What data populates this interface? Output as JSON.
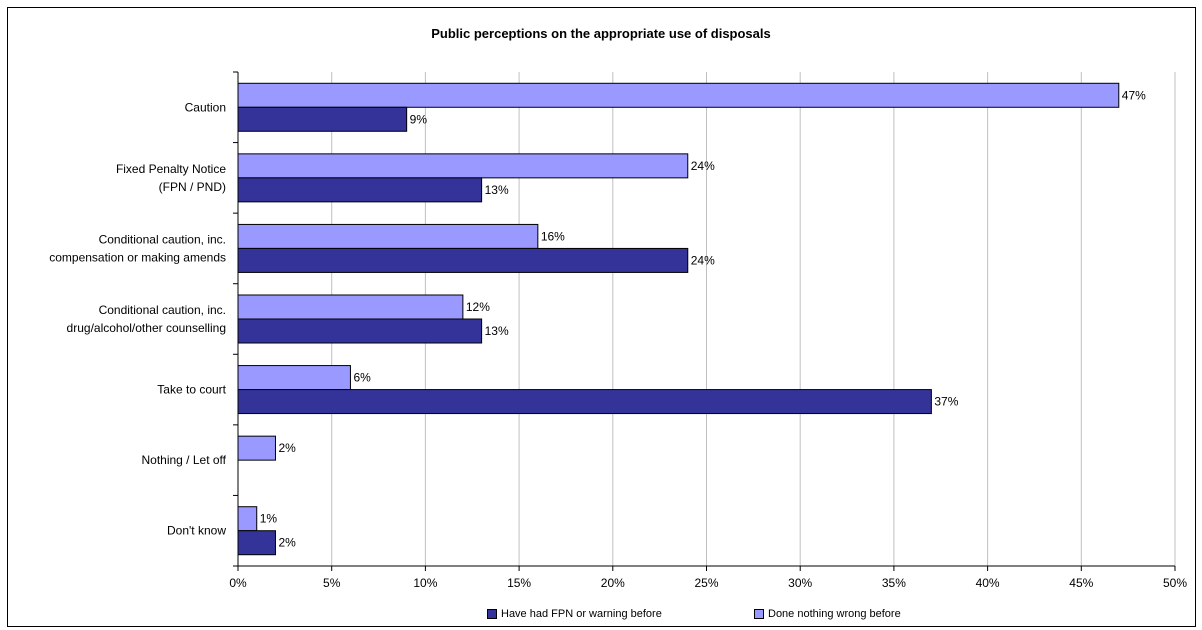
{
  "chart_data": {
    "type": "bar",
    "orientation": "horizontal",
    "title": "Public perceptions on the appropriate use of disposals",
    "categories": [
      [
        "Caution"
      ],
      [
        "Fixed Penalty Notice",
        "(FPN / PND)"
      ],
      [
        "Conditional caution, inc.",
        "compensation or making amends"
      ],
      [
        "Conditional caution, inc.",
        "drug/alcohol/other counselling"
      ],
      [
        "Take to court"
      ],
      [
        "Nothing / Let off"
      ],
      [
        "Don't know"
      ]
    ],
    "series": [
      {
        "name": "Done nothing wrong before",
        "color": "#9999ff",
        "values": [
          47,
          24,
          16,
          12,
          6,
          2,
          1
        ],
        "labels": [
          "47%",
          "24%",
          "16%",
          "12%",
          "6%",
          "2%",
          "1%"
        ]
      },
      {
        "name": "Have had FPN or warning before",
        "color": "#333399",
        "values": [
          9,
          13,
          24,
          13,
          37,
          null,
          2
        ],
        "labels": [
          "9%",
          "13%",
          "24%",
          "13%",
          "37%",
          null,
          "2%"
        ]
      }
    ],
    "xlim": [
      0,
      50
    ],
    "x_ticks": [
      0,
      5,
      10,
      15,
      20,
      25,
      30,
      35,
      40,
      45,
      50
    ],
    "x_tick_labels": [
      "0%",
      "5%",
      "10%",
      "15%",
      "20%",
      "25%",
      "30%",
      "35%",
      "40%",
      "45%",
      "50%"
    ],
    "grid": true,
    "legend_position": "bottom"
  },
  "legend": {
    "items": [
      {
        "label": "Have had FPN or warning before",
        "color": "#333399"
      },
      {
        "label": "Done nothing wrong before",
        "color": "#9999ff"
      }
    ]
  }
}
